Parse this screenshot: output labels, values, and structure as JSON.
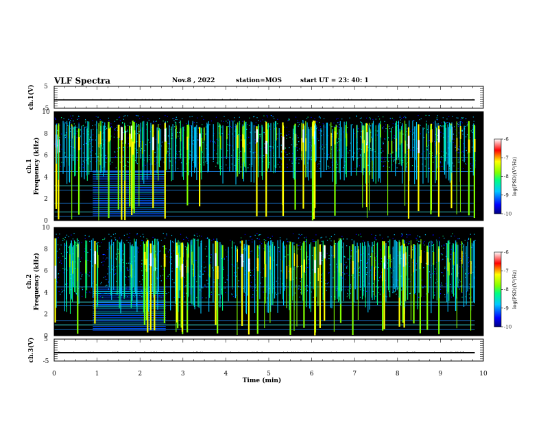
{
  "header": {
    "title": "VLF Spectra",
    "date": "Nov.8 , 2022",
    "station": "station=MOS",
    "start": "start UT = 23: 40: 1"
  },
  "chart_data": [
    {
      "type": "line",
      "name": "ch1-waveform",
      "ylabel": "ch.1(V)",
      "ylim": [
        -5,
        5
      ],
      "yticks": [
        "5",
        "-5"
      ],
      "series": [
        {
          "x": [
            0,
            9.8
          ],
          "values": [
            -1.2,
            -1.2
          ]
        }
      ]
    },
    {
      "type": "heatmap",
      "name": "ch1-spectrogram",
      "ylabel_top": "ch.1",
      "ylabel": "Frequency (kHz)",
      "ylim": [
        0,
        10
      ],
      "yticks": [
        "0",
        "2",
        "4",
        "6",
        "8",
        "10"
      ],
      "xlim": [
        0,
        10
      ],
      "xlabel": "",
      "time_extent_min": [
        0,
        9.8
      ],
      "dominant_band_khz": [
        5.8,
        9.2
      ],
      "dense_lines_block": {
        "t_min": [
          0.9,
          2.6
        ],
        "f_khz": [
          0.5,
          4.6
        ]
      },
      "persistent_lines_khz": [
        0.4,
        0.8,
        1.6,
        2.8,
        3.2,
        4.5,
        5.8
      ],
      "colorbar": {
        "label": "log(PSD)(V²/Hz)",
        "ticks": [
          "-6",
          "-7",
          "-8",
          "-9",
          "-10"
        ],
        "range": [
          -10,
          -6
        ]
      }
    },
    {
      "type": "heatmap",
      "name": "ch2-spectrogram",
      "ylabel_top": "ch.2",
      "ylabel": "Frequency (kHz)",
      "ylim": [
        0,
        10
      ],
      "yticks": [
        "0",
        "2",
        "4",
        "6",
        "8",
        "10"
      ],
      "xlim": [
        0,
        10
      ],
      "time_extent_min": [
        0,
        9.8
      ],
      "dominant_band_khz": [
        4.5,
        9.0
      ],
      "dense_lines_block": {
        "t_min": [
          0.9,
          2.6
        ],
        "f_khz": [
          0.5,
          4.5
        ]
      },
      "persistent_lines_khz": [
        0.6,
        1.0,
        1.4,
        2.8,
        3.1,
        4.5
      ],
      "colorbar": {
        "label": "log(PSD)(V²/Hz)",
        "ticks": [
          "-6",
          "-7",
          "-8",
          "-9",
          "-10"
        ],
        "range": [
          -10,
          -6
        ]
      }
    },
    {
      "type": "line",
      "name": "ch3-waveform",
      "ylabel": "ch.3(V)",
      "ylim": [
        -5,
        5
      ],
      "yticks": [
        "5",
        "-5"
      ],
      "xlim": [
        0,
        10
      ],
      "xlabel": "Time (min)",
      "xticks": [
        "0",
        "1",
        "2",
        "3",
        "4",
        "5",
        "6",
        "7",
        "8",
        "9",
        "10"
      ],
      "series": [
        {
          "x": [
            0,
            9.8
          ],
          "values": [
            -1.2,
            -1.2
          ]
        }
      ]
    }
  ]
}
